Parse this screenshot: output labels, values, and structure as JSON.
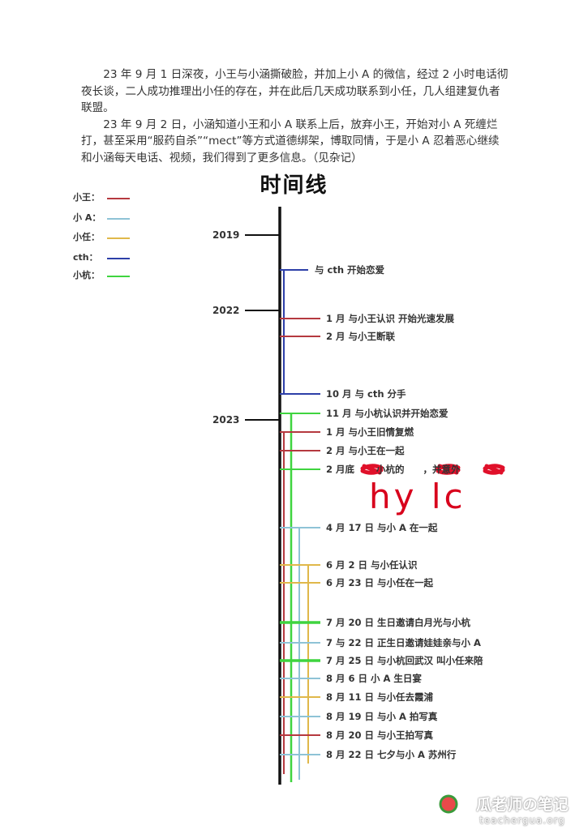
{
  "paragraphs": [
    "23 年 9 月 1 日深夜，小王与小涵撕破脸，并加上小 A 的微信，经过 2 小时电话彻夜长谈，二人成功推理出小任的存在，并在此后几天成功联系到小任，几人组建复仇者联盟。",
    "23 年 9 月 2 日，小涵知道小王和小 A 联系上后，放弃小王，开始对小 A 死缠烂打，甚至采用“服药自杀”“mect”等方式道德绑架，博取同情，于是小 A 忍着恶心继续和小涵每天电话、视频，我们得到了更多信息。（见杂记）"
  ],
  "timeline_title": "时间线",
  "legend": [
    {
      "label": "小王：",
      "color": "#b5393f"
    },
    {
      "label": "小 A：",
      "color": "#8ec3d6"
    },
    {
      "label": "小任：",
      "color": "#e0b84a"
    },
    {
      "label": "cth：",
      "color": "#2d3fa8"
    },
    {
      "label": "小杭：",
      "color": "#3fd43f"
    }
  ],
  "years": [
    "2019",
    "2022",
    "2023"
  ],
  "events": [
    {
      "text": "与 cth 开始恋爱",
      "person": "cth"
    },
    {
      "text": "1 月  与小王认识 开始光速发展",
      "person": "小王"
    },
    {
      "text": "2 月  与小王断联",
      "person": "小王"
    },
    {
      "text": "10 月  与 cth 分手",
      "person": "cth"
    },
    {
      "text": "11 月  与小杭认识并开始恋爱",
      "person": "小杭"
    },
    {
      "text": "1 月  与小王旧情复燃",
      "person": "小王"
    },
    {
      "text": "2 月  与小王在一起",
      "person": "小王"
    },
    {
      "text": "2 月底 　　小杭的　　，并意外",
      "person": "小杭"
    },
    {
      "text": "4 月 17 日  与小 A 在一起",
      "person": "小A"
    },
    {
      "text": "6 月 2 日  与小任认识",
      "person": "小任"
    },
    {
      "text": "6 月 23 日  与小任在一起",
      "person": "小任"
    },
    {
      "text": "7 月 20 日  生日邀请白月光与小杭",
      "person": "小杭"
    },
    {
      "text": "7 与 22 日  正生日邀请娃娃亲与小 A",
      "person": "小A"
    },
    {
      "text": "7 月 25 日  与小杭回武汉  叫小任来陪",
      "person": "小杭"
    },
    {
      "text": "8 月 6 日  小 A 生日宴",
      "person": "小A"
    },
    {
      "text": "8 月 11 日  与小任去霞浦",
      "person": "小任"
    },
    {
      "text": "8 月 19 日  与小 A 拍写真",
      "person": "小A"
    },
    {
      "text": "8 月 20 日  与小王拍写真",
      "person": "小王"
    },
    {
      "text": "8 月 22 日  七夕与小 A 苏州行",
      "person": "小A"
    }
  ],
  "handwriting": "hy lc",
  "watermark": {
    "title": "瓜老师の笔记",
    "url": "teachergua.org"
  }
}
